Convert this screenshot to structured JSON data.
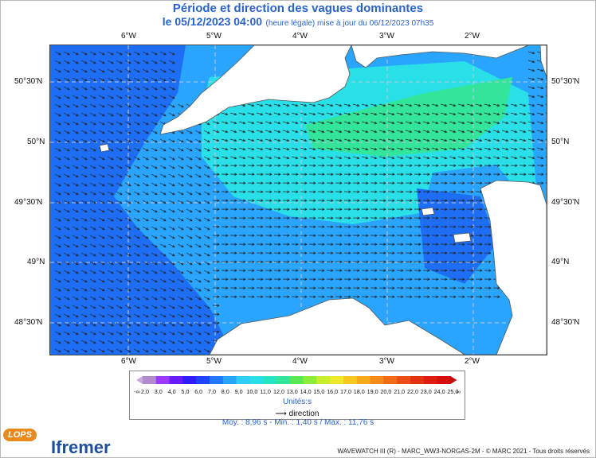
{
  "title": "Période et direction des vagues dominantes",
  "subtitle": {
    "datetime": "le 05/12/2023 04:00",
    "note": "(heure légale) mise à jour du 06/12/2023 07h35"
  },
  "axes": {
    "longitude_labels": [
      "6°W",
      "5°W",
      "4°W",
      "3°W",
      "2°W"
    ],
    "latitude_labels": [
      "50°30'N",
      "50°N",
      "49°30'N",
      "49°N",
      "48°30'N"
    ]
  },
  "legend": {
    "values": [
      "2,0",
      "3,0",
      "4,0",
      "5,0",
      "6,0",
      "7,0",
      "8,0",
      "9,0",
      "10,0",
      "11,0",
      "12,0",
      "13,0",
      "14,0",
      "15,0",
      "16,0",
      "17,0",
      "18,0",
      "19,0",
      "20,0",
      "21,0",
      "22,0",
      "23,0",
      "24,0",
      "25,0"
    ],
    "under_symbol": "-∞",
    "over_symbol": "∞",
    "colors": [
      "#b38ccf",
      "#9c38ff",
      "#6a1cff",
      "#2f1cff",
      "#1e46ff",
      "#1f78ff",
      "#2aa5ff",
      "#30cdf8",
      "#2ae0e8",
      "#27e4c2",
      "#33e59a",
      "#58e852",
      "#8cec3a",
      "#c8ee2c",
      "#f0e82a",
      "#f7c81f",
      "#f7a91c",
      "#f38a1a",
      "#ef6c18",
      "#ea4e15",
      "#e43312",
      "#de1c10",
      "#d60f0e"
    ],
    "units_label": "Unités:s",
    "direction_label": "direction"
  },
  "stats": "Moy. : 8,96 s   -   Min. : 1,40 s / Max. : 11,76 s",
  "credit": "WAVEWATCH III (R) - MARC_WW3-NORGAS-2M - © MARC 2021 - Tous droits réservés",
  "logos": {
    "lops": "LOPS",
    "ifremer": "Ifremer"
  },
  "map_colors": {
    "sea_low": "#1e6ef5",
    "sea_mid": "#2aa5ff",
    "sea_high": "#2ae0e8",
    "band": "#33e59a",
    "land": "#ffffff",
    "grid": "#c0c8dc"
  }
}
